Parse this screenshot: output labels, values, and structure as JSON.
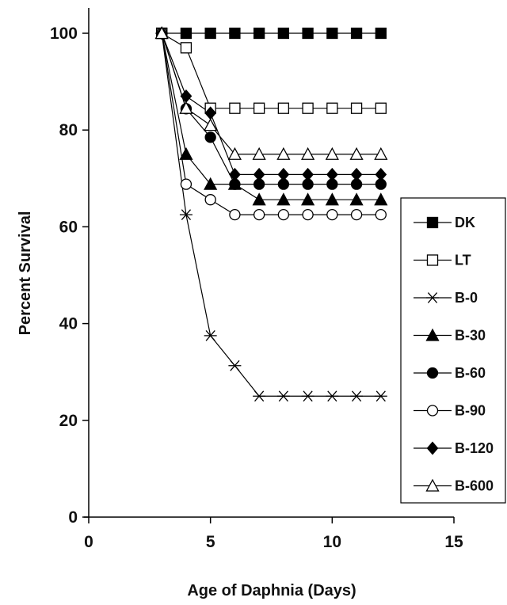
{
  "chart_data": {
    "type": "line",
    "xlabel": "Age of Daphnia (Days)",
    "ylabel": "Percent Survival",
    "xlim": [
      0,
      15
    ],
    "ylim": [
      0,
      100
    ],
    "xticks": [
      0,
      5,
      10,
      15
    ],
    "yticks": [
      0,
      20,
      40,
      60,
      80,
      100
    ],
    "grid": false,
    "legend_position": "right",
    "series": [
      {
        "name": "DK",
        "marker": "square-filled",
        "points": [
          [
            3,
            100
          ],
          [
            4,
            100
          ],
          [
            5,
            100
          ],
          [
            6,
            100
          ],
          [
            7,
            100
          ],
          [
            8,
            100
          ],
          [
            9,
            100
          ],
          [
            10,
            100
          ],
          [
            11,
            100
          ],
          [
            12,
            100
          ]
        ]
      },
      {
        "name": "LT",
        "marker": "square-open",
        "points": [
          [
            3,
            100
          ],
          [
            4,
            97
          ],
          [
            5,
            84.5
          ],
          [
            6,
            84.5
          ],
          [
            7,
            84.5
          ],
          [
            8,
            84.5
          ],
          [
            9,
            84.5
          ],
          [
            10,
            84.5
          ],
          [
            11,
            84.5
          ],
          [
            12,
            84.5
          ]
        ]
      },
      {
        "name": "B-0",
        "marker": "star",
        "points": [
          [
            3,
            100
          ],
          [
            4,
            62.5
          ],
          [
            5,
            37.5
          ],
          [
            6,
            31.3
          ],
          [
            7,
            25
          ],
          [
            8,
            25
          ],
          [
            9,
            25
          ],
          [
            10,
            25
          ],
          [
            11,
            25
          ],
          [
            12,
            25
          ]
        ]
      },
      {
        "name": "B-30",
        "marker": "triangle-filled",
        "points": [
          [
            3,
            100
          ],
          [
            4,
            75
          ],
          [
            5,
            68.8
          ],
          [
            6,
            68.8
          ],
          [
            7,
            65.6
          ],
          [
            8,
            65.6
          ],
          [
            9,
            65.6
          ],
          [
            10,
            65.6
          ],
          [
            11,
            65.6
          ],
          [
            12,
            65.6
          ]
        ]
      },
      {
        "name": "B-60",
        "marker": "circle-filled",
        "points": [
          [
            3,
            100
          ],
          [
            4,
            84.4
          ],
          [
            5,
            78.5
          ],
          [
            6,
            68.8
          ],
          [
            7,
            68.8
          ],
          [
            8,
            68.8
          ],
          [
            9,
            68.8
          ],
          [
            10,
            68.8
          ],
          [
            11,
            68.8
          ],
          [
            12,
            68.8
          ]
        ]
      },
      {
        "name": "B-90",
        "marker": "circle-open",
        "points": [
          [
            3,
            100
          ],
          [
            4,
            68.8
          ],
          [
            5,
            65.6
          ],
          [
            6,
            62.5
          ],
          [
            7,
            62.5
          ],
          [
            8,
            62.5
          ],
          [
            9,
            62.5
          ],
          [
            10,
            62.5
          ],
          [
            11,
            62.5
          ],
          [
            12,
            62.5
          ]
        ]
      },
      {
        "name": "B-120",
        "marker": "diamond-filled",
        "points": [
          [
            3,
            100
          ],
          [
            4,
            87
          ],
          [
            5,
            83.5
          ],
          [
            6,
            70.8
          ],
          [
            7,
            70.8
          ],
          [
            8,
            70.8
          ],
          [
            9,
            70.8
          ],
          [
            10,
            70.8
          ],
          [
            11,
            70.8
          ],
          [
            12,
            70.8
          ]
        ]
      },
      {
        "name": "B-600",
        "marker": "triangle-open",
        "points": [
          [
            3,
            100
          ],
          [
            4,
            84.5
          ],
          [
            5,
            81
          ],
          [
            6,
            75
          ],
          [
            7,
            75
          ],
          [
            8,
            75
          ],
          [
            9,
            75
          ],
          [
            10,
            75
          ],
          [
            11,
            75
          ],
          [
            12,
            75
          ]
        ]
      }
    ]
  }
}
